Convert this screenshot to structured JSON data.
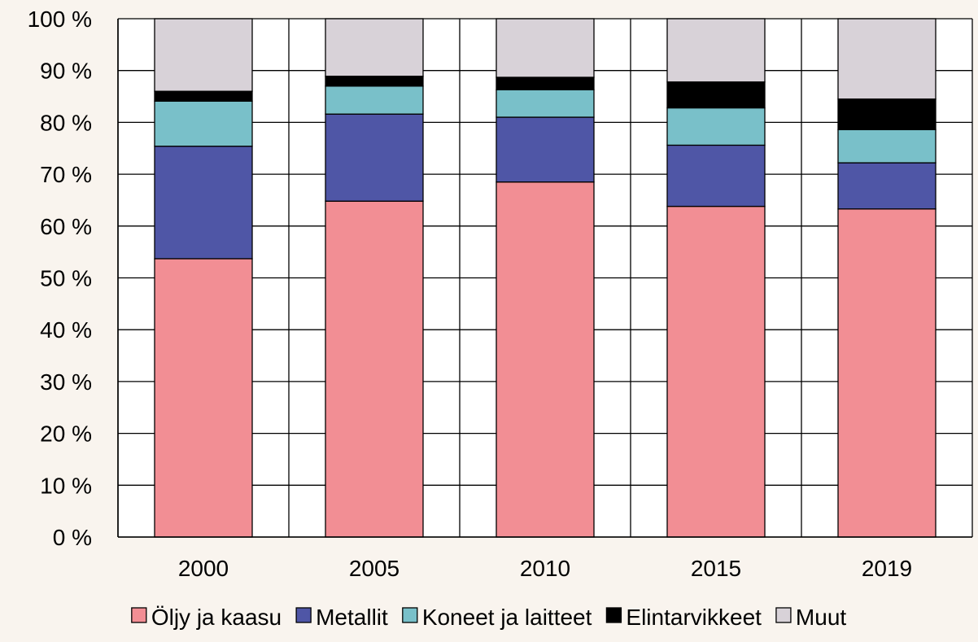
{
  "chart_data": {
    "type": "bar",
    "stacked": true,
    "categories": [
      "2000",
      "2005",
      "2010",
      "2015",
      "2019"
    ],
    "series": [
      {
        "name": "Öljy ja kaasu",
        "color": "#f28e94",
        "values": [
          53.7,
          64.8,
          68.5,
          63.8,
          63.3
        ]
      },
      {
        "name": "Metallit",
        "color": "#4f56a6",
        "values": [
          21.7,
          16.8,
          12.5,
          11.8,
          8.9
        ]
      },
      {
        "name": "Koneet ja laitteet",
        "color": "#79c0c9",
        "values": [
          8.7,
          5.4,
          5.3,
          7.2,
          6.4
        ]
      },
      {
        "name": "Elintarvikkeet",
        "color": "#000000",
        "values": [
          1.9,
          1.9,
          2.4,
          5.0,
          5.9
        ]
      },
      {
        "name": "Muut",
        "color": "#d8d2d8",
        "values": [
          14.0,
          11.1,
          11.3,
          12.2,
          15.5
        ]
      }
    ],
    "y_ticks": [
      "0 %",
      "10 %",
      "20 %",
      "30 %",
      "40 %",
      "50 %",
      "60 %",
      "70 %",
      "80 %",
      "90 %",
      "100 %"
    ],
    "ylim": [
      0,
      100
    ],
    "grid": true,
    "legend_position": "bottom",
    "title": "",
    "xlabel": "",
    "ylabel": ""
  }
}
